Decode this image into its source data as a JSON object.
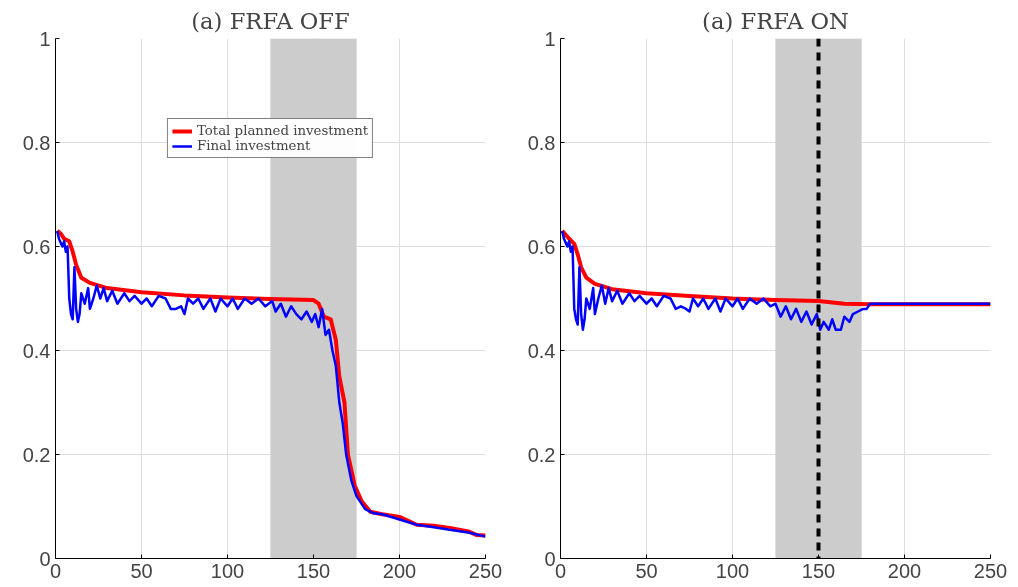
{
  "chart_data": [
    {
      "type": "line",
      "title": "(a) FRFA OFF",
      "xlim": [
        0,
        250
      ],
      "ylim": [
        0,
        1
      ],
      "xticks": [
        0,
        50,
        100,
        150,
        200,
        250
      ],
      "yticks": [
        0,
        0.2,
        0.4,
        0.6,
        0.8,
        1
      ],
      "grid": true,
      "legend": "top",
      "line_style": "solid",
      "marker": "none",
      "bands": [
        {
          "axis": "x",
          "from": 125,
          "to": 175,
          "color": "#cccccc"
        }
      ],
      "series": [
        {
          "name": "Total planned investment",
          "color": "#ff0000",
          "x": [
            1,
            3,
            5,
            8,
            10,
            12,
            15,
            20,
            30,
            50,
            75,
            100,
            125,
            150,
            153,
            156,
            160,
            163,
            165,
            168,
            170,
            174,
            178,
            183,
            190,
            200,
            210,
            220,
            230,
            240,
            245,
            250
          ],
          "values": [
            0.63,
            0.625,
            0.615,
            0.61,
            0.59,
            0.565,
            0.54,
            0.53,
            0.52,
            0.512,
            0.506,
            0.502,
            0.499,
            0.497,
            0.49,
            0.465,
            0.46,
            0.42,
            0.35,
            0.3,
            0.2,
            0.14,
            0.11,
            0.09,
            0.085,
            0.08,
            0.065,
            0.063,
            0.058,
            0.052,
            0.045,
            0.044
          ]
        },
        {
          "name": "Final investment",
          "color": "#0000ff",
          "x": [
            1,
            2,
            4,
            5,
            6,
            7,
            8,
            9,
            10,
            11,
            12,
            13,
            14,
            15,
            17,
            19,
            20,
            22,
            24,
            26,
            28,
            30,
            33,
            36,
            40,
            43,
            46,
            50,
            53,
            56,
            60,
            64,
            67,
            70,
            73,
            75,
            77,
            80,
            83,
            86,
            90,
            93,
            96,
            100,
            103,
            106,
            110,
            114,
            118,
            122,
            126,
            128,
            131,
            134,
            137,
            140,
            143,
            146,
            149,
            151,
            153,
            155,
            157,
            159,
            161,
            163,
            165,
            167,
            169,
            172,
            175,
            180,
            185,
            190,
            200,
            210,
            220,
            230,
            240,
            250
          ],
          "values": [
            0.63,
            0.615,
            0.6,
            0.61,
            0.59,
            0.6,
            0.5,
            0.47,
            0.46,
            0.56,
            0.48,
            0.455,
            0.47,
            0.51,
            0.49,
            0.52,
            0.48,
            0.5,
            0.525,
            0.5,
            0.52,
            0.495,
            0.515,
            0.49,
            0.51,
            0.495,
            0.505,
            0.49,
            0.5,
            0.485,
            0.505,
            0.5,
            0.48,
            0.48,
            0.485,
            0.47,
            0.5,
            0.49,
            0.5,
            0.48,
            0.5,
            0.475,
            0.5,
            0.485,
            0.5,
            0.48,
            0.5,
            0.49,
            0.5,
            0.485,
            0.495,
            0.475,
            0.49,
            0.465,
            0.485,
            0.47,
            0.46,
            0.475,
            0.455,
            0.47,
            0.445,
            0.48,
            0.43,
            0.44,
            0.4,
            0.37,
            0.3,
            0.26,
            0.2,
            0.15,
            0.12,
            0.095,
            0.087,
            0.085,
            0.075,
            0.065,
            0.06,
            0.055,
            0.05,
            0.042
          ]
        }
      ]
    },
    {
      "type": "line",
      "title": "(a) FRFA ON",
      "xlim": [
        0,
        250
      ],
      "ylim": [
        0,
        1
      ],
      "xticks": [
        0,
        50,
        100,
        150,
        200,
        250
      ],
      "yticks": [
        0,
        0.2,
        0.4,
        0.6,
        0.8,
        1
      ],
      "grid": true,
      "line_style": "solid",
      "marker": "none",
      "bands": [
        {
          "axis": "x",
          "from": 125,
          "to": 175,
          "color": "#cccccc"
        }
      ],
      "ref_lines": [
        {
          "axis": "x",
          "value": 150,
          "color": "#000000",
          "line_style": "dashed"
        }
      ],
      "series": [
        {
          "color": "#ff0000",
          "x": [
            1,
            5,
            8,
            10,
            12,
            15,
            20,
            30,
            50,
            75,
            100,
            125,
            150,
            165,
            180,
            250
          ],
          "values": [
            0.63,
            0.615,
            0.605,
            0.585,
            0.56,
            0.54,
            0.528,
            0.518,
            0.51,
            0.505,
            0.5,
            0.497,
            0.495,
            0.49,
            0.489,
            0.489
          ]
        },
        {
          "color": "#0000ff",
          "x": [
            1,
            2,
            4,
            5,
            6,
            7,
            8,
            9,
            10,
            11,
            12,
            13,
            14,
            15,
            17,
            19,
            20,
            22,
            24,
            26,
            28,
            30,
            33,
            36,
            40,
            43,
            46,
            50,
            53,
            56,
            60,
            64,
            67,
            70,
            73,
            75,
            77,
            80,
            83,
            86,
            90,
            93,
            96,
            100,
            103,
            106,
            110,
            114,
            118,
            122,
            125,
            128,
            131,
            134,
            137,
            140,
            143,
            146,
            149,
            151,
            153,
            156,
            158,
            160,
            163,
            165,
            168,
            170,
            173,
            176,
            178,
            180,
            250
          ],
          "values": [
            0.63,
            0.615,
            0.6,
            0.61,
            0.59,
            0.6,
            0.48,
            0.46,
            0.45,
            0.56,
            0.47,
            0.44,
            0.46,
            0.5,
            0.48,
            0.52,
            0.47,
            0.5,
            0.525,
            0.49,
            0.52,
            0.495,
            0.515,
            0.49,
            0.51,
            0.495,
            0.505,
            0.49,
            0.5,
            0.485,
            0.505,
            0.5,
            0.48,
            0.485,
            0.48,
            0.475,
            0.5,
            0.485,
            0.5,
            0.48,
            0.5,
            0.475,
            0.5,
            0.485,
            0.5,
            0.48,
            0.5,
            0.49,
            0.5,
            0.485,
            0.49,
            0.465,
            0.485,
            0.46,
            0.48,
            0.455,
            0.475,
            0.45,
            0.47,
            0.44,
            0.455,
            0.44,
            0.46,
            0.44,
            0.44,
            0.465,
            0.455,
            0.47,
            0.475,
            0.48,
            0.48,
            0.49,
            0.49
          ]
        }
      ]
    }
  ]
}
